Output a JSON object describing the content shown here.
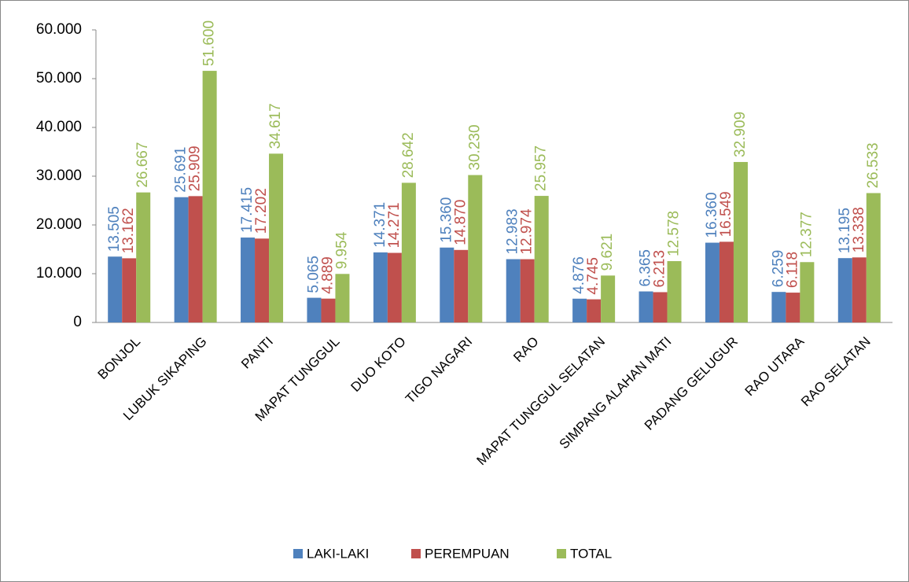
{
  "chart_data": {
    "type": "bar",
    "categories": [
      "BONJOL",
      "LUBUK SIKAPING",
      "PANTI",
      "MAPAT TUNGGUL",
      "DUO KOTO",
      "TIGO NAGARI",
      "RAO",
      "MAPAT TUNGGUL SELATAN",
      "SIMPANG ALAHAN MATI",
      "PADANG GELUGUR",
      "RAO UTARA",
      "RAO SELATAN"
    ],
    "series": [
      {
        "name": "LAKI-LAKI",
        "color": "#4f81bd",
        "values": [
          13505,
          25691,
          17415,
          5065,
          14371,
          15360,
          12983,
          4876,
          6365,
          16360,
          6259,
          13195
        ],
        "value_labels": [
          "13.505",
          "25.691",
          "17.415",
          "5.065",
          "14.371",
          "15.360",
          "12.983",
          "4.876",
          "6.365",
          "16.360",
          "6.259",
          "13.195"
        ]
      },
      {
        "name": "PEREMPUAN",
        "color": "#c0504d",
        "values": [
          13162,
          25909,
          17202,
          4889,
          14271,
          14870,
          12974,
          4745,
          6213,
          16549,
          6118,
          13338
        ],
        "value_labels": [
          "13.162",
          "25.909",
          "17.202",
          "4.889",
          "14.271",
          "14.870",
          "12.974",
          "4.745",
          "6.213",
          "16.549",
          "6.118",
          "13.338"
        ]
      },
      {
        "name": "TOTAL",
        "color": "#9bbb59",
        "values": [
          26667,
          51600,
          34617,
          9954,
          28642,
          30230,
          25957,
          9621,
          12578,
          32909,
          12377,
          26533
        ],
        "value_labels": [
          "26.667",
          "51.600",
          "34.617",
          "9.954",
          "28.642",
          "30.230",
          "25.957",
          "9.621",
          "12.578",
          "32.909",
          "12.377",
          "26.533"
        ]
      }
    ],
    "ylim": [
      0,
      60000
    ],
    "yticks": [
      0,
      {
        "value": 10000,
        "label": "10.000"
      },
      {
        "value": 20000,
        "label": "20.000"
      },
      {
        "value": 30000,
        "label": "30.000"
      },
      {
        "value": 40000,
        "label": "40.000"
      },
      {
        "value": 50000,
        "label": "50.000"
      },
      {
        "value": 60000,
        "label": "60.000"
      }
    ],
    "grid": false,
    "legend": "bottom"
  }
}
